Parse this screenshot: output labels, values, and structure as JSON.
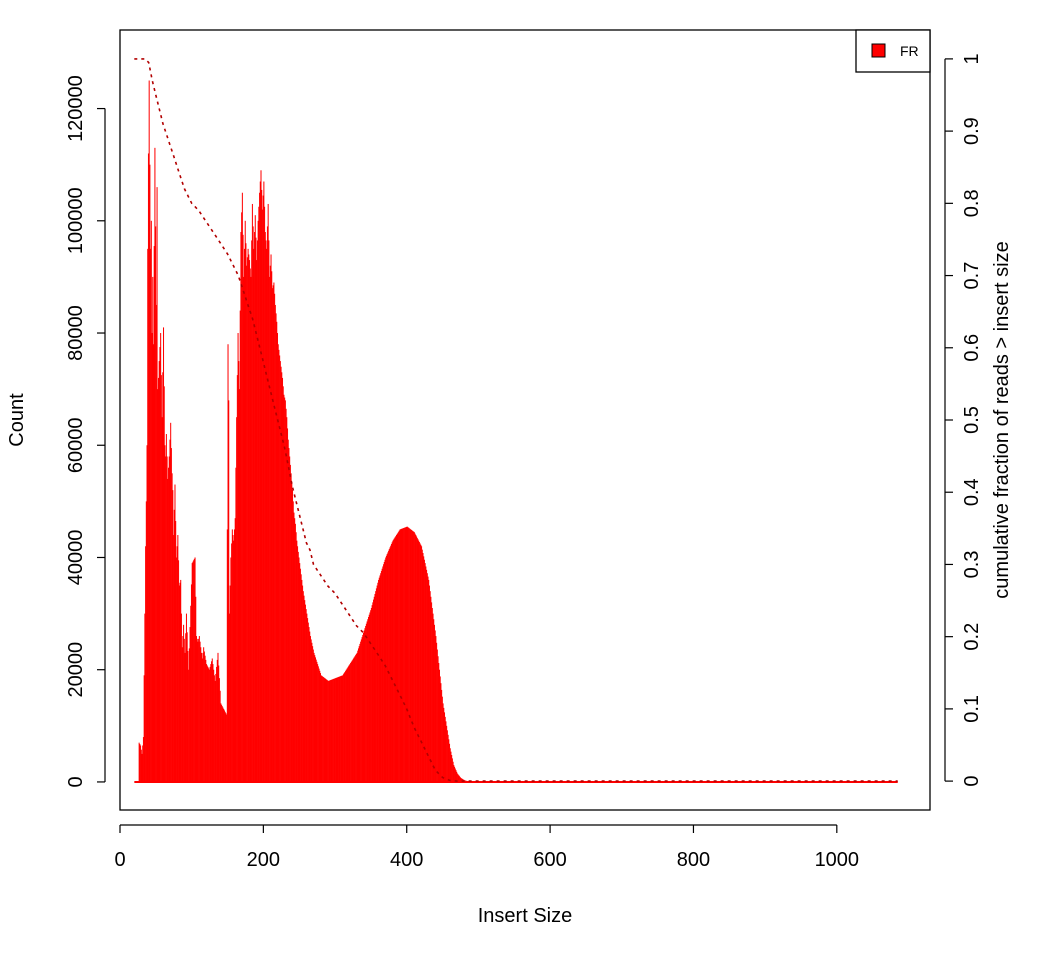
{
  "chart_data": {
    "type": "area",
    "title": "",
    "xlabel": "Insert Size",
    "ylabel": "Count",
    "y2label": "cumulative fraction of reads > insert size",
    "xlim": [
      0,
      1130
    ],
    "ylim": [
      -5000,
      134000
    ],
    "y2lim": [
      -0.04,
      1.04
    ],
    "x_ticks": [
      0,
      200,
      400,
      600,
      800,
      1000
    ],
    "y_ticks": [
      0,
      20000,
      40000,
      60000,
      80000,
      100000,
      120000
    ],
    "y2_ticks": [
      0,
      0.1,
      0.2,
      0.3,
      0.4,
      0.5,
      0.6,
      0.7,
      0.8,
      0.9,
      1
    ],
    "grid": false,
    "legend": {
      "position": "top-right",
      "entries": [
        {
          "label": "FR",
          "color": "#ff0000"
        }
      ]
    },
    "series": [
      {
        "name": "FR",
        "kind": "histogram",
        "color": "#ff0000",
        "x": [
          20,
          23,
          25,
          26,
          28,
          30,
          32,
          34,
          35,
          36,
          37,
          38,
          39,
          40,
          41,
          42,
          43,
          44,
          45,
          46,
          48,
          50,
          51,
          52,
          53,
          54,
          56,
          58,
          60,
          62,
          63,
          64,
          66,
          68,
          70,
          72,
          73,
          74,
          76,
          78,
          80,
          82,
          84,
          86,
          88,
          90,
          92,
          95,
          100,
          104,
          106,
          108,
          110,
          114,
          116,
          120,
          124,
          128,
          132,
          136,
          140,
          144,
          148,
          150,
          151,
          152,
          154,
          156,
          158,
          160,
          162,
          164,
          166,
          168,
          170,
          172,
          174,
          175,
          176,
          178,
          180,
          182,
          184,
          186,
          188,
          190,
          192,
          194,
          196,
          198,
          200,
          202,
          204,
          206,
          208,
          210,
          212,
          214,
          216,
          218,
          220,
          222,
          224,
          226,
          228,
          230,
          232,
          234,
          236,
          238,
          240,
          242,
          244,
          246,
          248,
          250,
          255,
          260,
          265,
          270,
          275,
          280,
          290,
          300,
          310,
          320,
          330,
          340,
          350,
          360,
          370,
          380,
          390,
          400,
          405,
          410,
          420,
          430,
          440,
          450,
          460,
          465,
          470,
          475,
          480,
          485,
          490,
          500,
          600,
          800,
          1000,
          1085
        ],
        "values": [
          0,
          0,
          0,
          7000,
          6500,
          5000,
          8000,
          30000,
          42000,
          50000,
          60000,
          95000,
          112000,
          125000,
          110000,
          95000,
          100000,
          80000,
          90000,
          78000,
          113000,
          85000,
          106000,
          70000,
          72000,
          75000,
          80000,
          65000,
          81000,
          60000,
          58000,
          62000,
          54000,
          58000,
          64000,
          55000,
          52000,
          44000,
          53000,
          40000,
          44000,
          35000,
          36000,
          24000,
          28000,
          23000,
          30000,
          20000,
          39000,
          40000,
          26000,
          25000,
          26000,
          22000,
          24000,
          21000,
          20000,
          22000,
          18000,
          23000,
          14000,
          13000,
          12000,
          78000,
          68000,
          30000,
          40000,
          45000,
          43000,
          47000,
          65000,
          80000,
          70000,
          98000,
          105000,
          90000,
          100000,
          96000,
          92000,
          95000,
          93000,
          90000,
          103000,
          95000,
          101000,
          93000,
          100000,
          105000,
          109000,
          102000,
          107000,
          98000,
          95000,
          103000,
          90000,
          94000,
          88000,
          89000,
          85000,
          82000,
          78000,
          76000,
          74000,
          72000,
          69000,
          68000,
          65000,
          61000,
          58000,
          55000,
          52000,
          48000,
          46000,
          43000,
          41000,
          39000,
          34000,
          30000,
          26000,
          23000,
          21000,
          19000,
          18000,
          18500,
          19000,
          21000,
          23000,
          27000,
          31000,
          36000,
          40000,
          43000,
          45000,
          45500,
          45000,
          44500,
          42000,
          36000,
          26000,
          14000,
          6000,
          3000,
          1500,
          700,
          300,
          100,
          60,
          20,
          5,
          0,
          0,
          0
        ]
      },
      {
        "name": "",
        "kind": "cumulative",
        "axis": "right",
        "color": "#b20000",
        "x": [
          20,
          30,
          35,
          40,
          45,
          50,
          55,
          60,
          65,
          70,
          75,
          80,
          85,
          90,
          95,
          100,
          105,
          110,
          120,
          130,
          140,
          150,
          160,
          165,
          170,
          175,
          180,
          185,
          190,
          195,
          200,
          205,
          210,
          215,
          220,
          225,
          230,
          235,
          240,
          245,
          250,
          255,
          260,
          265,
          270,
          280,
          290,
          300,
          310,
          320,
          330,
          340,
          350,
          360,
          370,
          380,
          390,
          400,
          410,
          420,
          430,
          440,
          450,
          460,
          470,
          480,
          490,
          500,
          600,
          800,
          1000,
          1085
        ],
        "values": [
          1,
          1,
          1,
          0.995,
          0.97,
          0.95,
          0.93,
          0.91,
          0.895,
          0.88,
          0.865,
          0.85,
          0.835,
          0.82,
          0.81,
          0.8,
          0.795,
          0.79,
          0.775,
          0.76,
          0.745,
          0.73,
          0.71,
          0.7,
          0.685,
          0.67,
          0.655,
          0.64,
          0.62,
          0.6,
          0.58,
          0.56,
          0.54,
          0.52,
          0.5,
          0.48,
          0.46,
          0.435,
          0.41,
          0.39,
          0.37,
          0.35,
          0.33,
          0.32,
          0.3,
          0.285,
          0.27,
          0.26,
          0.245,
          0.23,
          0.215,
          0.205,
          0.19,
          0.175,
          0.16,
          0.14,
          0.12,
          0.1,
          0.075,
          0.055,
          0.035,
          0.015,
          0.005,
          0.001,
          0,
          0,
          0,
          0,
          0,
          0,
          0,
          0
        ]
      }
    ]
  }
}
